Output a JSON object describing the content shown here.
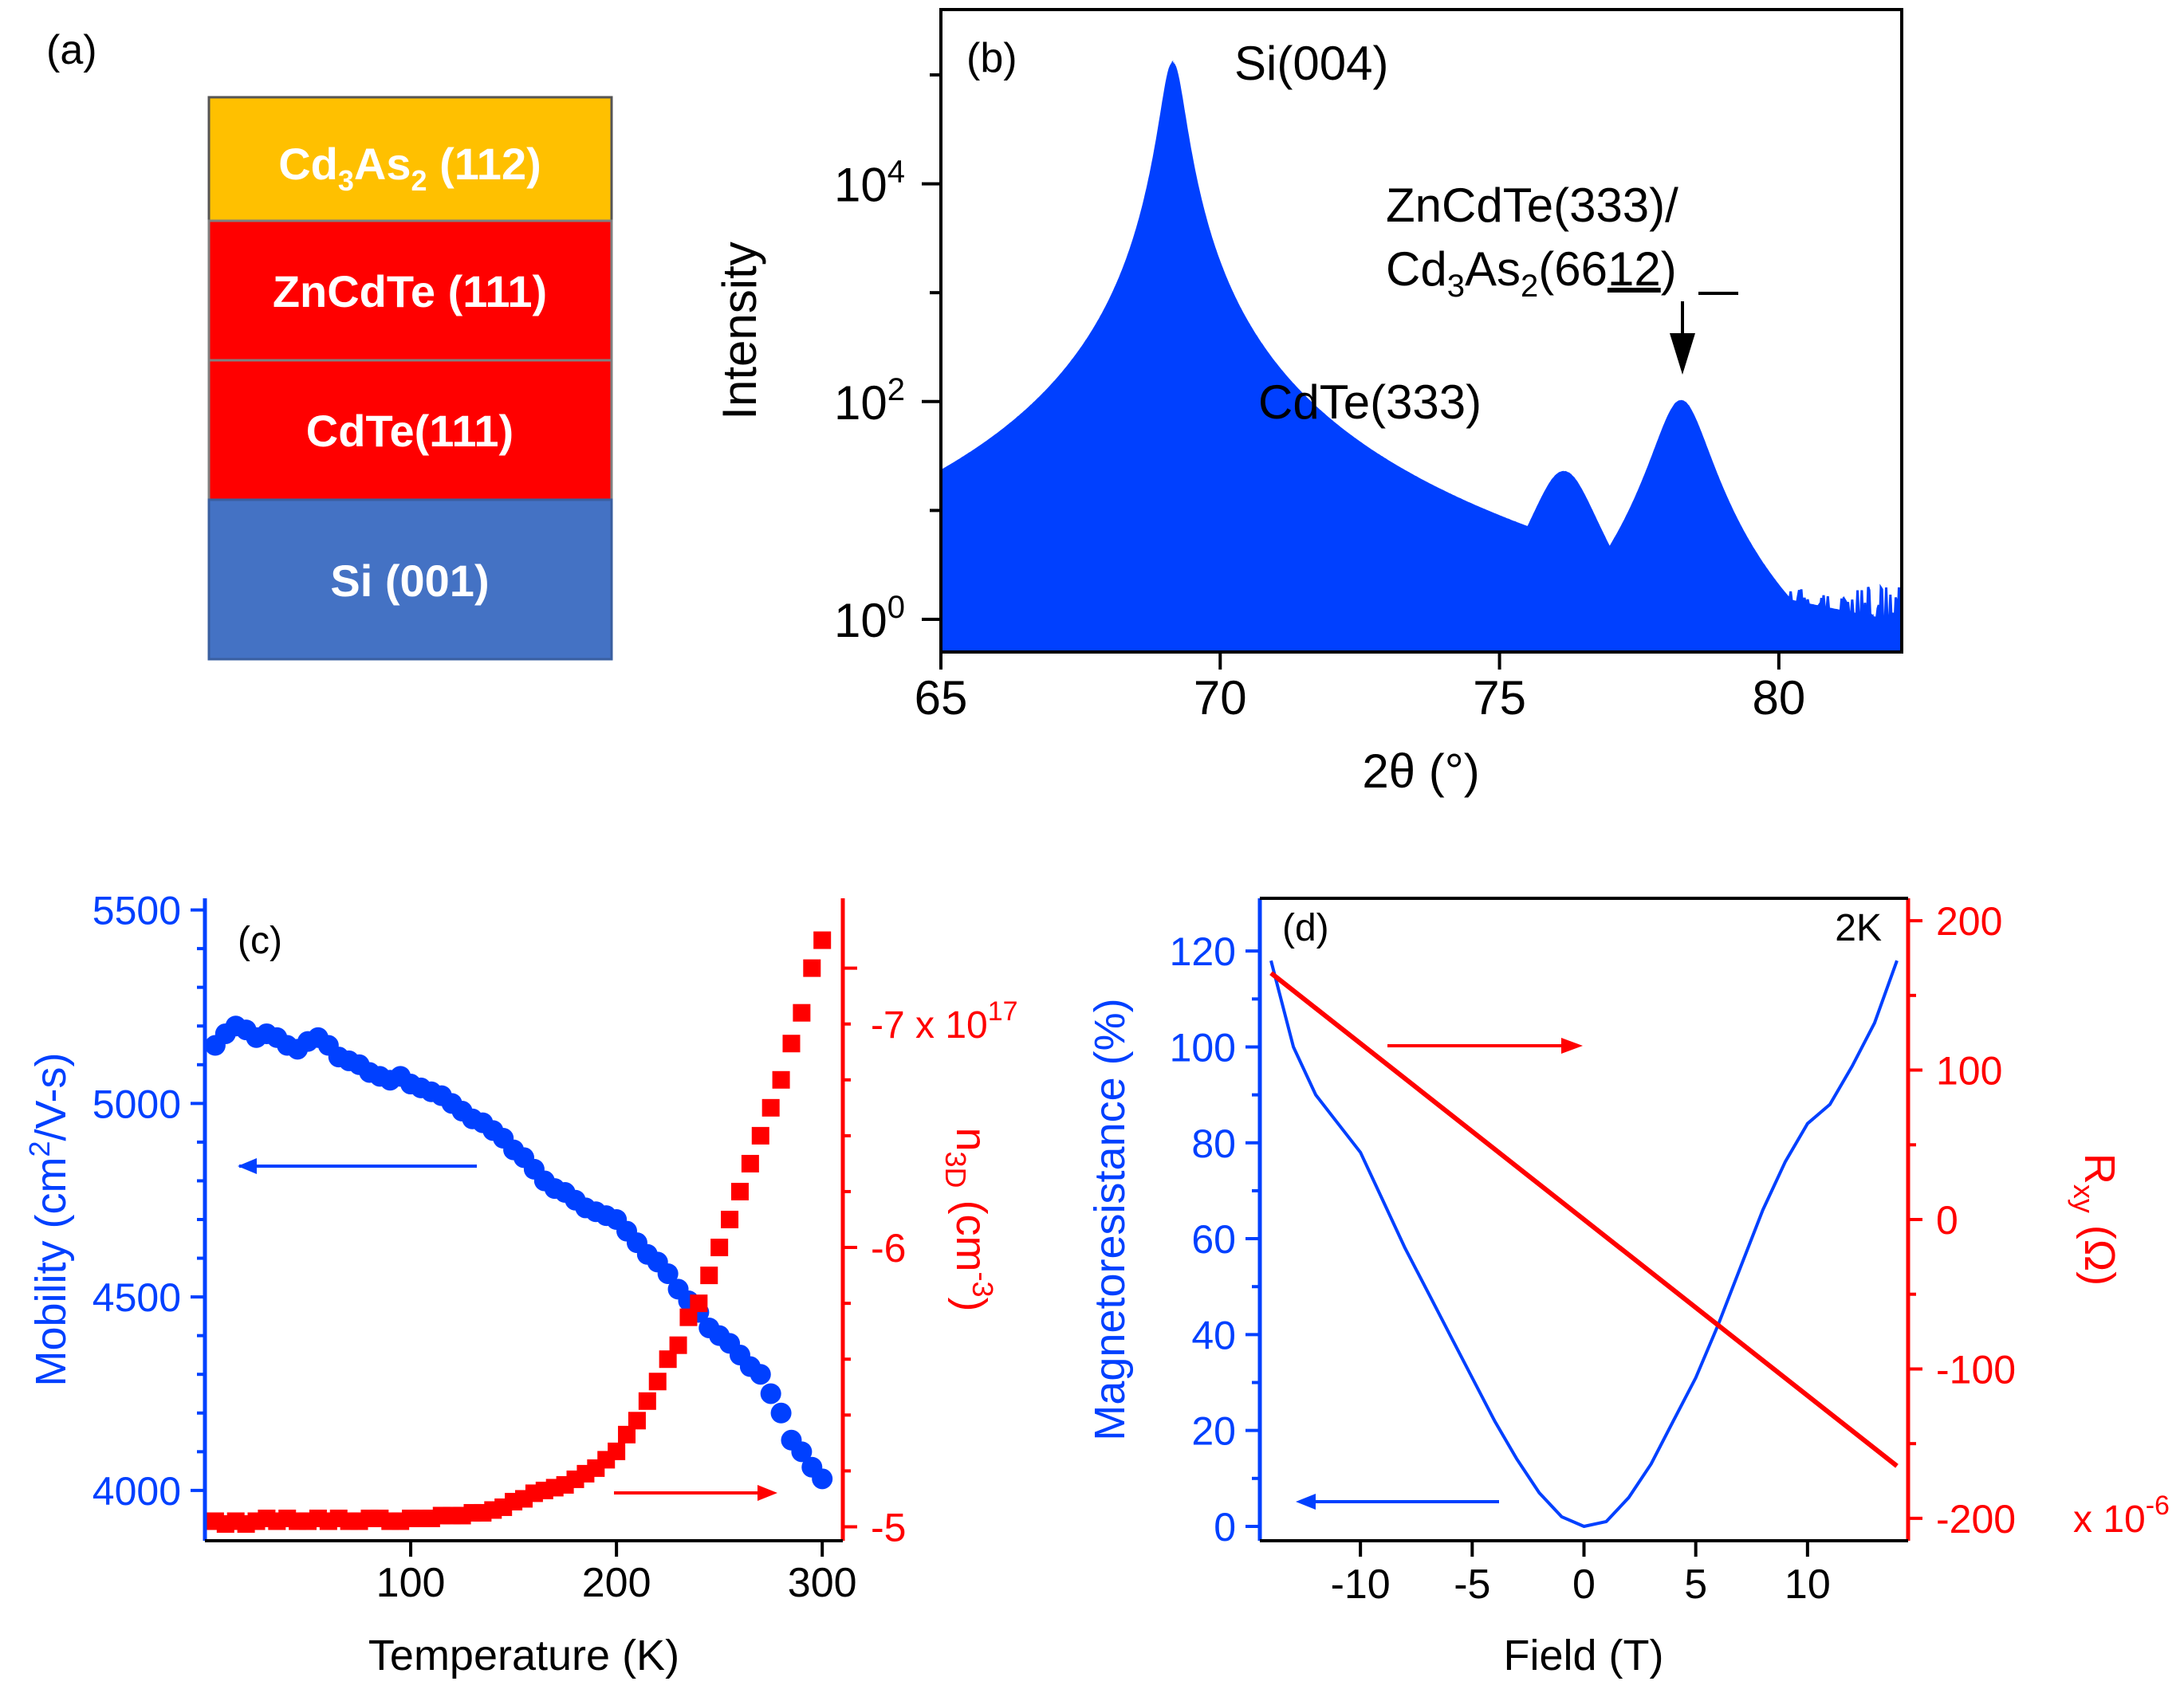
{
  "figure": {
    "panel_a": {
      "label": "(a)",
      "layers": [
        {
          "base": "Cd",
          "sub1": "3",
          "mid": "As",
          "sub2": "2",
          "rest": " (112)",
          "color": "#FFC000",
          "text_color": "#ffffff"
        },
        {
          "base": "ZnCdTe (111)",
          "color": "#FF0000",
          "text_color": "#ffffff"
        },
        {
          "base": "CdTe(111)",
          "color": "#FF0000",
          "text_color": "#ffffff"
        },
        {
          "base": "Si (001)",
          "color": "#4472C4",
          "text_color": "#ffffff"
        }
      ]
    },
    "colors": {
      "blue": "#0040FF",
      "red": "#FF0000",
      "axis": "#000000"
    }
  },
  "chart_data": [
    {
      "id": "b",
      "type": "line",
      "panel_label": "(b)",
      "xlabel": "2θ (°)",
      "ylabel": "Intensity",
      "xlim": [
        65,
        82.2
      ],
      "ylim_log10": [
        -0.3,
        5.6
      ],
      "yscale": "log",
      "xticks": [
        65,
        70,
        75,
        80
      ],
      "yticks": [
        {
          "exp": 0,
          "base": "10",
          "sup": "0"
        },
        {
          "exp": 2,
          "base": "10",
          "sup": "2"
        },
        {
          "exp": 4,
          "base": "10",
          "sup": "4"
        }
      ],
      "annotations": [
        {
          "text": "Si(004)",
          "x": 69.1,
          "log10y": 5.25
        },
        {
          "text": "CdTe(333)",
          "x": 73.8,
          "log10y": 1.9
        },
        {
          "text": "ZnCdTe(333)/",
          "x": 76.4,
          "log10y": 3.85
        },
        {
          "text": "Cd3As2(6612)",
          "x": 76.4,
          "log10y": 3.3
        }
      ],
      "arrow_target": {
        "x": 78.25,
        "log10y": 2.3
      },
      "series": [
        {
          "name": "XRD",
          "peaks": [
            {
              "center": 69.15,
              "log10_height": 5.1,
              "width": 0.12
            },
            {
              "center": 76.15,
              "log10_height": 1.35,
              "width": 0.35
            },
            {
              "center": 78.25,
              "log10_height": 2.0,
              "width": 0.28
            }
          ],
          "background_log10": [
            -0.3,
            0.3
          ]
        }
      ]
    },
    {
      "id": "c",
      "type": "scatter",
      "panel_label": "(c)",
      "xlabel": "Temperature (K)",
      "ylabel_left": "Mobility (cm²/V-s)",
      "ylabel_right": "n3D (cm⁻³)",
      "right_axis_scale_label": "-7 x 10",
      "right_axis_scale_sup": "17",
      "xlim": [
        0,
        310
      ],
      "ylim_left": [
        3870,
        5530
      ],
      "ylim_right": [
        -4.95,
        -7.25
      ],
      "xticks": [
        100,
        200,
        300
      ],
      "yticks_left": [
        4000,
        4500,
        5000,
        5500
      ],
      "yticks_right": [
        -5,
        -6
      ],
      "series": [
        {
          "name": "Mobility",
          "axis": "left",
          "color": "blue",
          "x": [
            5,
            10,
            15,
            20,
            25,
            30,
            35,
            40,
            45,
            50,
            55,
            60,
            65,
            70,
            75,
            80,
            85,
            90,
            95,
            100,
            105,
            110,
            115,
            120,
            125,
            130,
            135,
            140,
            145,
            150,
            155,
            160,
            165,
            170,
            175,
            180,
            185,
            190,
            195,
            200,
            205,
            210,
            215,
            220,
            225,
            230,
            235,
            240,
            245,
            250,
            255,
            260,
            265,
            270,
            275,
            280,
            285,
            290,
            295,
            300
          ],
          "y": [
            5150,
            5180,
            5200,
            5190,
            5170,
            5180,
            5170,
            5150,
            5140,
            5160,
            5170,
            5150,
            5120,
            5110,
            5100,
            5080,
            5070,
            5060,
            5070,
            5050,
            5040,
            5030,
            5020,
            5000,
            4980,
            4960,
            4950,
            4930,
            4910,
            4880,
            4860,
            4830,
            4800,
            4780,
            4770,
            4750,
            4730,
            4720,
            4710,
            4700,
            4670,
            4640,
            4610,
            4590,
            4560,
            4520,
            4490,
            4460,
            4420,
            4400,
            4380,
            4350,
            4320,
            4300,
            4250,
            4200,
            4130,
            4100,
            4060,
            4030
          ]
        },
        {
          "name": "n3D",
          "axis": "right",
          "color": "red",
          "x": [
            5,
            10,
            15,
            20,
            25,
            30,
            35,
            40,
            45,
            50,
            55,
            60,
            65,
            70,
            75,
            80,
            85,
            90,
            95,
            100,
            105,
            110,
            115,
            120,
            125,
            130,
            135,
            140,
            145,
            150,
            155,
            160,
            165,
            170,
            175,
            180,
            185,
            190,
            195,
            200,
            205,
            210,
            215,
            220,
            225,
            230,
            235,
            240,
            245,
            250,
            255,
            260,
            265,
            270,
            275,
            280,
            285,
            290,
            295,
            300
          ],
          "y": [
            -5.02,
            -5.01,
            -5.02,
            -5.01,
            -5.02,
            -5.03,
            -5.02,
            -5.03,
            -5.02,
            -5.02,
            -5.03,
            -5.02,
            -5.03,
            -5.02,
            -5.02,
            -5.03,
            -5.03,
            -5.02,
            -5.02,
            -5.03,
            -5.03,
            -5.03,
            -5.04,
            -5.04,
            -5.04,
            -5.05,
            -5.05,
            -5.06,
            -5.07,
            -5.09,
            -5.1,
            -5.12,
            -5.13,
            -5.14,
            -5.15,
            -5.17,
            -5.19,
            -5.21,
            -5.24,
            -5.27,
            -5.33,
            -5.38,
            -5.45,
            -5.52,
            -5.6,
            -5.65,
            -5.75,
            -5.8,
            -5.9,
            -6.0,
            -6.1,
            -6.2,
            -6.3,
            -6.4,
            -6.5,
            -6.6,
            -6.73,
            -6.84,
            -7.0,
            -7.1
          ]
        }
      ],
      "arrows": [
        {
          "dir": "left",
          "series": "blue"
        },
        {
          "dir": "right",
          "series": "red"
        }
      ]
    },
    {
      "id": "d",
      "type": "line",
      "panel_label": "(d)",
      "corner_text": "2K",
      "xlabel": "Field (T)",
      "ylabel_left": "Magnetoresistance (%)",
      "ylabel_right": "Rxy (Ω)",
      "right_axis_scale_label": "x 10",
      "right_axis_scale_sup": "-6",
      "xlim": [
        -14.5,
        14.5
      ],
      "ylim_left": [
        -3,
        131
      ],
      "ylim_right": [
        -215,
        215
      ],
      "xticks": [
        -10,
        -5,
        0,
        5,
        10
      ],
      "yticks_left": [
        0,
        20,
        40,
        60,
        80,
        100,
        120
      ],
      "yticks_right": [
        -200,
        -100,
        0,
        100,
        200
      ],
      "series": [
        {
          "name": "Magnetoresistance",
          "axis": "left",
          "color": "blue",
          "x": [
            -14,
            -13,
            -12,
            -11,
            -10,
            -9,
            -8,
            -7,
            -6,
            -5,
            -4,
            -3,
            -2,
            -1,
            0,
            1,
            2,
            3,
            4,
            5,
            6,
            7,
            8,
            9,
            10,
            11,
            12,
            13,
            14
          ],
          "y": [
            118,
            100,
            90,
            84,
            78,
            68,
            58,
            49,
            40,
            31,
            22,
            14,
            7,
            2,
            0,
            1,
            6,
            13,
            22,
            31,
            42,
            54,
            66,
            76,
            84,
            88,
            96,
            105,
            118
          ]
        },
        {
          "name": "Rxy",
          "axis": "right",
          "color": "red",
          "x": [
            -14,
            14
          ],
          "y": [
            165,
            -165
          ]
        }
      ],
      "arrows": [
        {
          "dir": "left",
          "series": "blue"
        },
        {
          "dir": "right",
          "series": "red"
        }
      ]
    }
  ]
}
